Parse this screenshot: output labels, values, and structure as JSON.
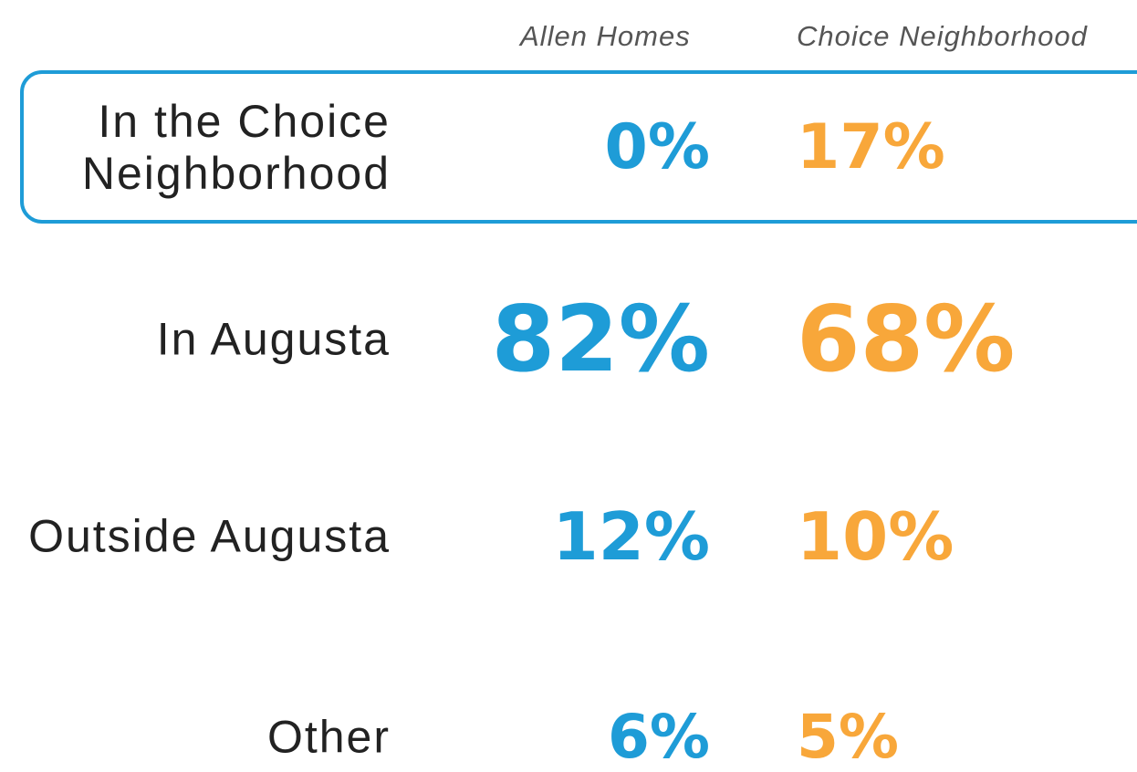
{
  "columns": [
    "Allen Homes",
    "Choice Neighborhood"
  ],
  "rows": [
    {
      "label": "In the Choice Neighborhood",
      "values": [
        "0%",
        "17%"
      ]
    },
    {
      "label": "In Augusta",
      "values": [
        "82%",
        "68%"
      ]
    },
    {
      "label": "Outside Augusta",
      "values": [
        "12%",
        "10%"
      ]
    },
    {
      "label": "Other",
      "values": [
        "6%",
        "5%"
      ]
    }
  ]
}
